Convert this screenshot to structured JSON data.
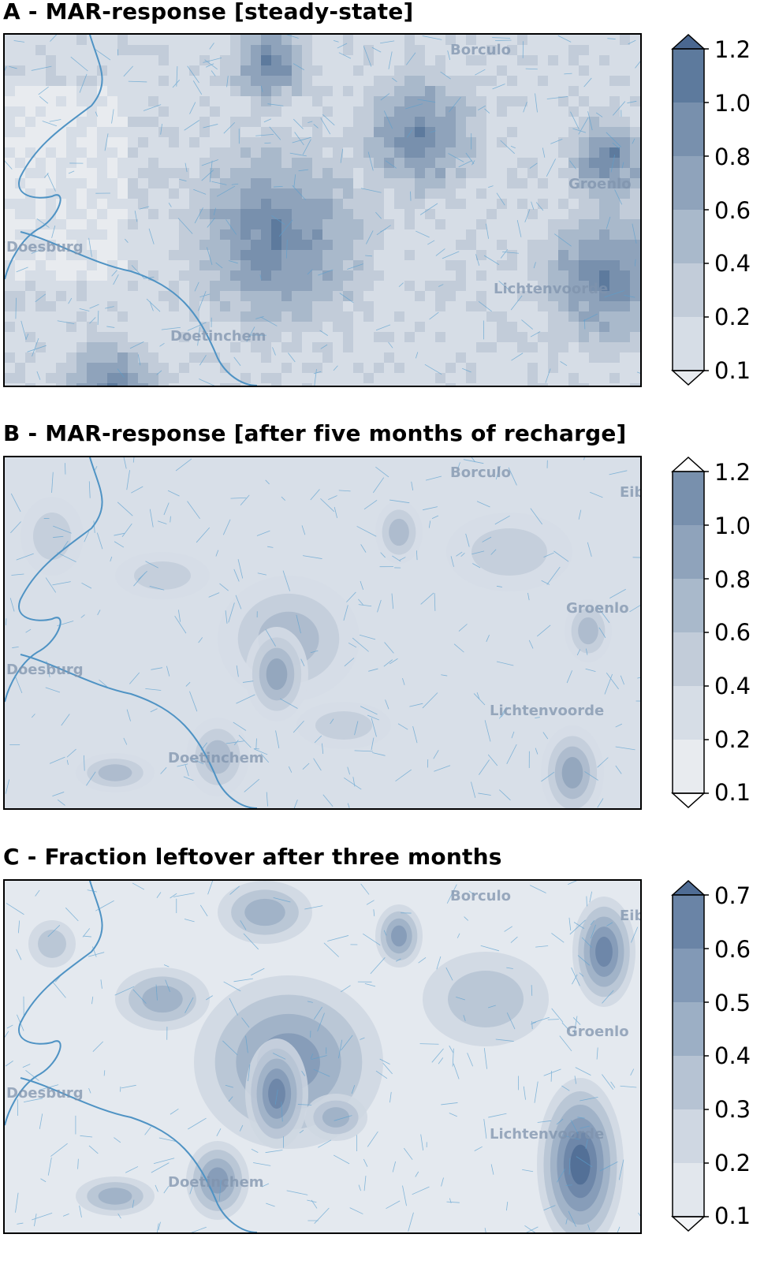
{
  "panels": [
    {
      "id": "A",
      "title": "A - MAR-response [steady-state]",
      "colorbar": {
        "ticks": [
          "1.2",
          "1.0",
          "0.8",
          "0.6",
          "0.4",
          "0.2",
          "0.1"
        ],
        "extend": "both",
        "colors": [
          "#e8ebef",
          "#d6dde6",
          "#c2ccd9",
          "#a9b9cb",
          "#8fa3bb",
          "#7890ad",
          "#5d7a9d",
          "#4a6790"
        ]
      },
      "places": [
        "Borculo",
        "Groenlo",
        "Doesburg",
        "Lichtenvoorde",
        "Doetinchem"
      ]
    },
    {
      "id": "B",
      "title": "B - MAR-response [after five months of recharge]",
      "colorbar": {
        "ticks": [
          "1.2",
          "1.0",
          "0.8",
          "0.6",
          "0.4",
          "0.2",
          "0.1"
        ],
        "extend": "both",
        "colors": [
          "#ffffff",
          "#e8ebef",
          "#d6dde6",
          "#c2ccd9",
          "#a9b9cb",
          "#8fa3bb",
          "#7890ad",
          "#ffffff"
        ]
      },
      "places": [
        "Borculo",
        "Eibergen",
        "Groenlo",
        "Doesburg",
        "Lichtenvoorde",
        "Doetinchem"
      ]
    },
    {
      "id": "C",
      "title": "C - Fraction leftover after three months",
      "colorbar": {
        "ticks": [
          "0.7",
          "0.6",
          "0.5",
          "0.4",
          "0.3",
          "0.2",
          "0.1"
        ],
        "extend": "both",
        "colors": [
          "#f3f5f8",
          "#e2e7ed",
          "#cfd7e2",
          "#b6c3d3",
          "#9cafc5",
          "#8299b6",
          "#6a84a6",
          "#4f6c94"
        ]
      },
      "places": [
        "Borculo",
        "Eibergen",
        "Groenlo",
        "Doesburg",
        "Lichtenvoorde",
        "Doetinchem"
      ]
    }
  ],
  "legend_note": ""
}
